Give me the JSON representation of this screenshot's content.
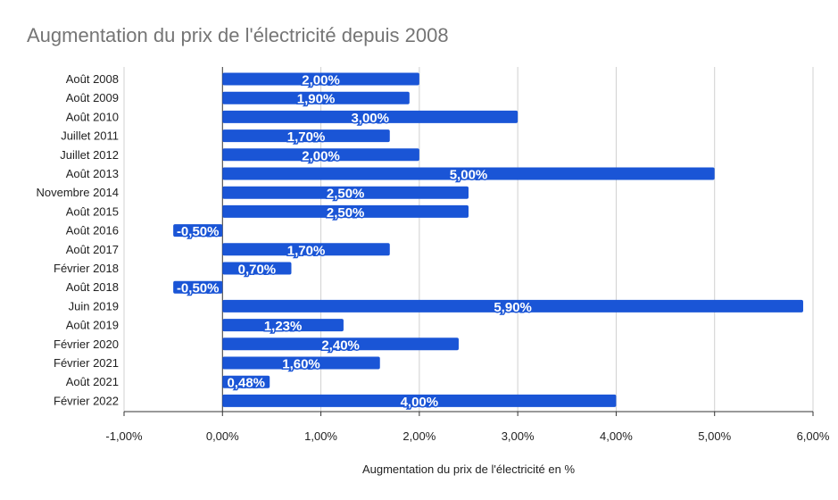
{
  "chart_data": {
    "type": "bar",
    "orientation": "horizontal",
    "title": "Augmentation du prix de l'électricité depuis 2008",
    "xlabel": "Augmentation du prix de l'électricité en %",
    "ylabel": "",
    "xlim": [
      -1.0,
      6.0
    ],
    "x_ticks": [
      -1.0,
      0.0,
      1.0,
      2.0,
      3.0,
      4.0,
      5.0,
      6.0
    ],
    "x_tick_labels": [
      "-1,00%",
      "0,00%",
      "1,00%",
      "2,00%",
      "3,00%",
      "4,00%",
      "5,00%",
      "6,00%"
    ],
    "grid": true,
    "legend": "none",
    "categories": [
      "Août 2008",
      "Août 2009",
      "Août 2010",
      "Juillet 2011",
      "Juillet 2012",
      "Août 2013",
      "Novembre 2014",
      "Août 2015",
      "Août 2016",
      "Août 2017",
      "Février 2018",
      "Août 2018",
      "Juin 2019",
      "Août 2019",
      "Février 2020",
      "Février 2021",
      "Août 2021",
      "Février 2022"
    ],
    "values": [
      2.0,
      1.9,
      3.0,
      1.7,
      2.0,
      5.0,
      2.5,
      2.5,
      -0.5,
      1.7,
      0.7,
      -0.5,
      5.9,
      1.23,
      2.4,
      1.6,
      0.48,
      4.0
    ],
    "data_labels": [
      "2,00%",
      "1,90%",
      "3,00%",
      "1,70%",
      "2,00%",
      "5,00%",
      "2,50%",
      "2,50%",
      "-0,50%",
      "1,70%",
      "0,70%",
      "-0,50%",
      "5,90%",
      "1,23%",
      "2,40%",
      "1,60%",
      "0,48%",
      "4,00%"
    ],
    "colors": {
      "bar": "#1a55d6",
      "grid": "#d0d0d0",
      "axis": "#333333",
      "title": "#757575"
    }
  }
}
